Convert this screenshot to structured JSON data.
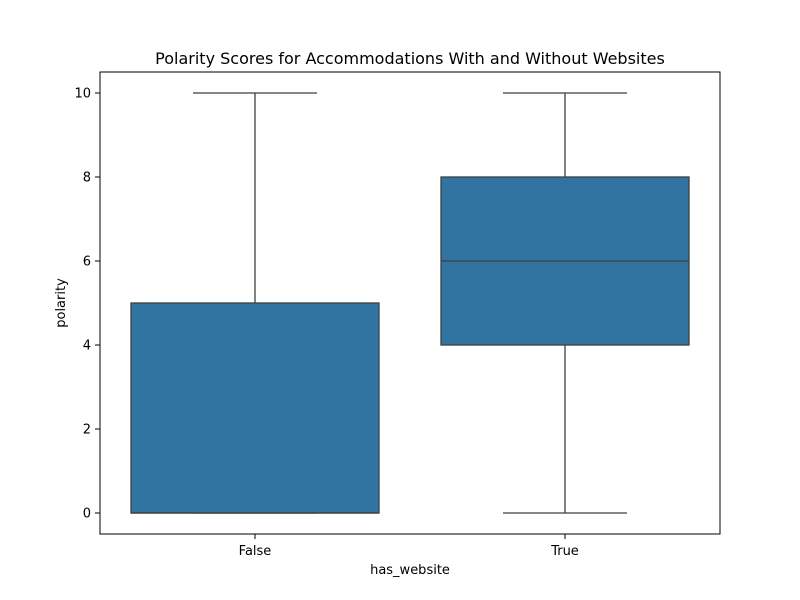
{
  "chart_data": {
    "type": "box",
    "title": "Polarity Scores for Accommodations With and Without Websites",
    "xlabel": "has_website",
    "ylabel": "polarity",
    "ylim": [
      -0.5,
      10.5
    ],
    "yticks": [
      0,
      2,
      4,
      6,
      8,
      10
    ],
    "grid": false,
    "categories": [
      "False",
      "True"
    ],
    "boxes": [
      {
        "category": "False",
        "whisker_low": 0,
        "q1": 0,
        "median": 0,
        "q3": 5,
        "whisker_high": 10
      },
      {
        "category": "True",
        "whisker_low": 0,
        "q1": 4,
        "median": 6,
        "q3": 8,
        "whisker_high": 10
      }
    ],
    "colors": {
      "box_fill": "#3274a1",
      "line": "#3f3f3f",
      "frame": "#000000"
    }
  }
}
